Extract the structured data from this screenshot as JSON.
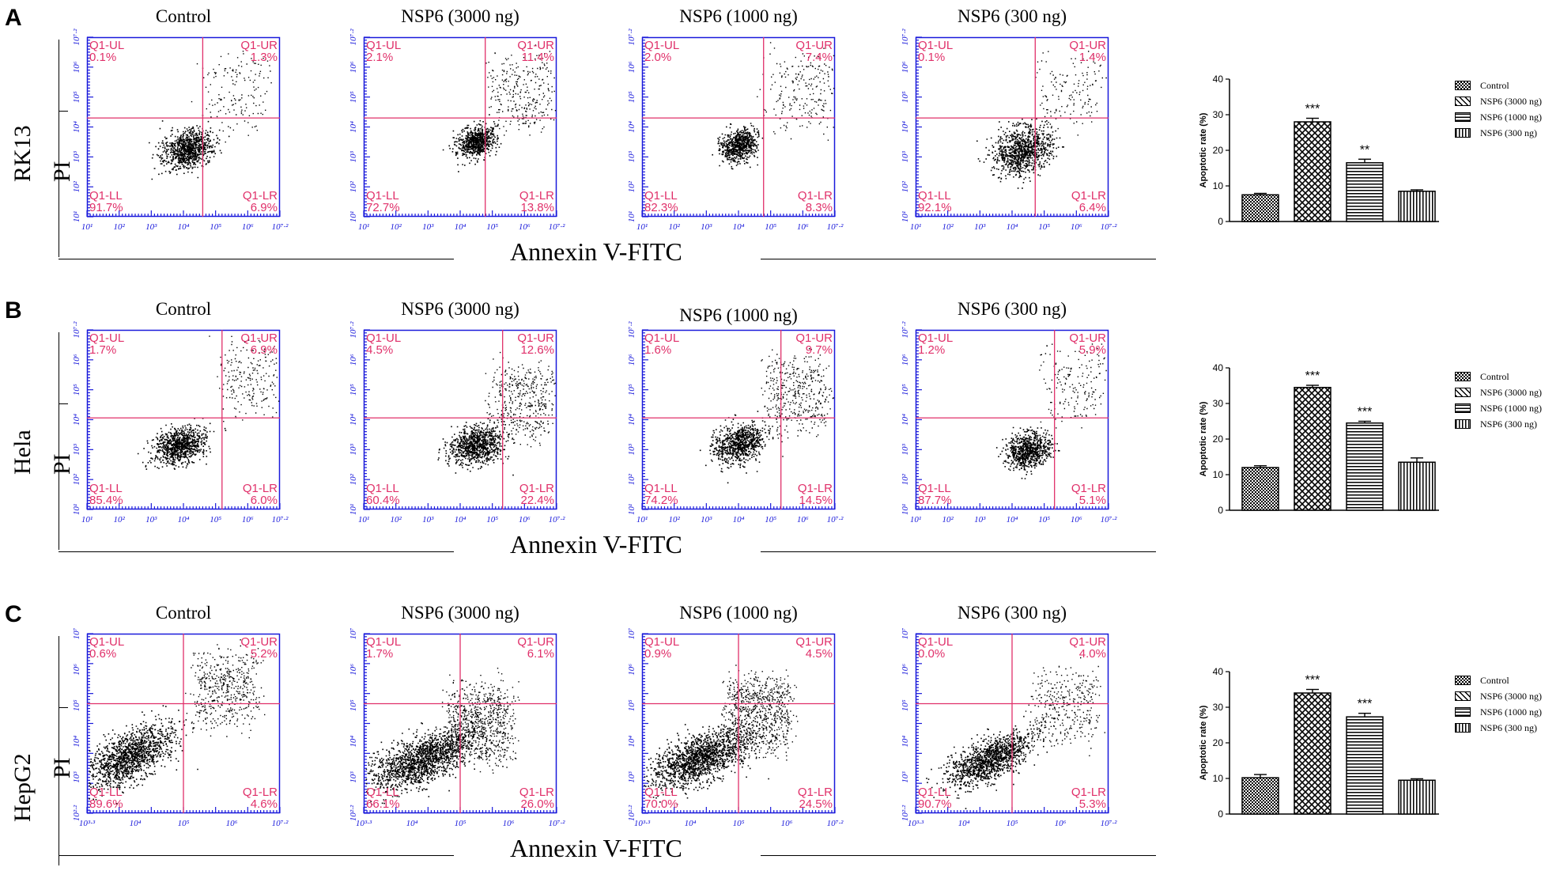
{
  "xlabel": "Annexin V-FITC",
  "ylabel": "PI",
  "bar_ylabel": "Apoptotic rate (%)",
  "legend": [
    "Control",
    "NSP6 (3000 ng)",
    "NSP6 (1000 ng)",
    "NSP6 (300 ng)"
  ],
  "quadrant_color": "#e0306a",
  "axis_color": "#1a1adb",
  "rows": [
    {
      "letter": "A",
      "cell": "RK13",
      "titles": [
        "Control",
        "NSP6 (3000 ng)",
        "NSP6 (1000 ng)",
        "NSP6 (300 ng)"
      ],
      "plots": [
        {
          "ul": "0.1%",
          "ur": "1.3%",
          "ll": "91.7%",
          "lr": "6.9%"
        },
        {
          "ul": "2.1%",
          "ur": "11.4%",
          "ll": "72.7%",
          "lr": "13.8%"
        },
        {
          "ul": "2.0%",
          "ur": "7.4%",
          "ll": "82.3%",
          "lr": "8.3%"
        },
        {
          "ul": "0.1%",
          "ur": "1.4%",
          "ll": "92.1%",
          "lr": "6.4%"
        }
      ]
    },
    {
      "letter": "B",
      "cell": "Hela",
      "titles": [
        "Control",
        "NSP6 (3000 ng)",
        "NSP6 (1000 ng)",
        "NSP6 (300 ng)"
      ],
      "plots": [
        {
          "ul": "1.7%",
          "ur": "6.9%",
          "ll": "85.4%",
          "lr": "6.0%"
        },
        {
          "ul": "4.5%",
          "ur": "12.6%",
          "ll": "60.4%",
          "lr": "22.4%"
        },
        {
          "ul": "1.6%",
          "ur": "9.7%",
          "ll": "74.2%",
          "lr": "14.5%"
        },
        {
          "ul": "1.2%",
          "ur": "5.9%",
          "ll": "87.7%",
          "lr": "5.1%"
        }
      ]
    },
    {
      "letter": "C",
      "cell": "HepG2",
      "titles": [
        "Control",
        "NSP6 (3000 ng)",
        "NSP6 (1000 ng)",
        "NSP6 (300 ng)"
      ],
      "plots": [
        {
          "ul": "0.6%",
          "ur": "5.2%",
          "ll": "89.6%",
          "lr": "4.6%"
        },
        {
          "ul": "1.7%",
          "ur": "6.1%",
          "ll": "66.1%",
          "lr": "26.0%"
        },
        {
          "ul": "0.9%",
          "ur": "4.5%",
          "ll": "70.0%",
          "lr": "24.5%"
        },
        {
          "ul": "0.0%",
          "ur": "4.0%",
          "ll": "90.7%",
          "lr": "5.3%"
        }
      ]
    }
  ],
  "axis_ticks": {
    "rk13_hela": {
      "x": [
        "10¹",
        "10²",
        "10³",
        "10⁴",
        "10⁵",
        "10⁶",
        "10⁷·²"
      ],
      "y": [
        "10¹",
        "10²",
        "10³",
        "10⁴",
        "10⁵",
        "10⁶",
        "10⁷·²"
      ]
    },
    "hepg2": {
      "x": [
        "10³·³",
        "10⁴",
        "10⁵",
        "10⁶",
        "10⁷·²"
      ],
      "y": [
        "10²·²",
        "10³",
        "10⁴",
        "10⁵",
        "10⁶",
        "10⁷"
      ]
    }
  },
  "chart_data": [
    {
      "type": "bar",
      "title": "RK13",
      "categories": [
        "Control",
        "NSP6 (3000 ng)",
        "NSP6 (1000 ng)",
        "NSP6 (300 ng)"
      ],
      "values": [
        7.5,
        28,
        16.5,
        8.5
      ],
      "errors": [
        0.4,
        1.0,
        1.0,
        0.4
      ],
      "significance": [
        "",
        "***",
        "**",
        ""
      ],
      "ylabel": "Apoptotic rate (%)",
      "ylim": [
        0,
        40
      ],
      "yticks": [
        0,
        10,
        20,
        30,
        40
      ]
    },
    {
      "type": "bar",
      "title": "Hela",
      "categories": [
        "Control",
        "NSP6 (3000 ng)",
        "NSP6 (1000 ng)",
        "NSP6 (300 ng)"
      ],
      "values": [
        12,
        34.5,
        24.5,
        13.5
      ],
      "errors": [
        0.5,
        0.6,
        0.5,
        1.2
      ],
      "significance": [
        "",
        "***",
        "***",
        ""
      ],
      "ylabel": "Apoptotic rate (%)",
      "ylim": [
        0,
        40
      ],
      "yticks": [
        0,
        10,
        20,
        30,
        40
      ]
    },
    {
      "type": "bar",
      "title": "HepG2",
      "categories": [
        "Control",
        "NSP6 (3000 ng)",
        "NSP6 (1000 ng)",
        "NSP6 (300 ng)"
      ],
      "values": [
        10.2,
        34,
        27.3,
        9.5
      ],
      "errors": [
        0.9,
        1.0,
        1.0,
        0.4
      ],
      "significance": [
        "",
        "***",
        "***",
        ""
      ],
      "ylabel": "Apoptotic rate (%)",
      "ylim": [
        0,
        40
      ],
      "yticks": [
        0,
        10,
        20,
        30,
        40
      ]
    }
  ]
}
